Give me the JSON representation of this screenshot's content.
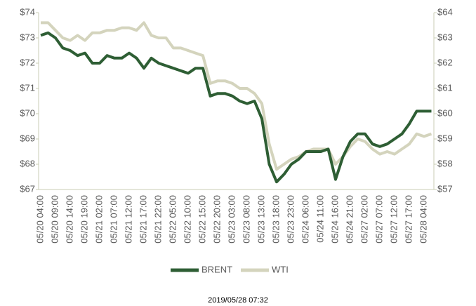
{
  "chart_data": {
    "type": "line",
    "categories": [
      "05/20 04:00",
      null,
      "05/20 09:00",
      null,
      "05/20 14:00",
      null,
      "05/20 19:00",
      null,
      "05/21 02:00",
      null,
      "05/21 07:00",
      null,
      "05/21 12:00",
      null,
      "05/21 17:00",
      null,
      "05/21 22:00",
      null,
      "05/22 05:00",
      null,
      "05/22 10:00",
      null,
      "05/22 15:00",
      null,
      "05/22 20:00",
      null,
      "05/23 03:00",
      null,
      "05/23 08:00",
      null,
      "05/23 13:00",
      null,
      "05/23 18:00",
      null,
      "05/23 23:00",
      null,
      "05/24 06:00",
      null,
      "05/24 11:00",
      null,
      "05/24 16:00",
      null,
      "05/24 21:00",
      null,
      "05/27 02:00",
      null,
      "05/27 07:00",
      null,
      "05/27 12:00",
      null,
      "05/27 17:00",
      null,
      "05/28 04:00",
      null
    ],
    "series": [
      {
        "name": "BRENT",
        "color": "#2e5e34",
        "axis": "y",
        "values": [
          73.1,
          73.2,
          73.0,
          72.6,
          72.5,
          72.3,
          72.4,
          72.0,
          72.0,
          72.3,
          72.2,
          72.2,
          72.4,
          72.2,
          71.8,
          72.2,
          72.0,
          71.9,
          71.8,
          71.7,
          71.6,
          71.8,
          71.8,
          70.7,
          70.8,
          70.8,
          70.7,
          70.5,
          70.4,
          70.5,
          69.8,
          68.0,
          67.3,
          67.6,
          68.0,
          68.2,
          68.5,
          68.5,
          68.5,
          68.6,
          67.4,
          68.3,
          68.9,
          69.2,
          69.2,
          68.8,
          68.7,
          68.8,
          69.0,
          69.2,
          69.6,
          70.1,
          70.1,
          70.1
        ]
      },
      {
        "name": "WTI",
        "color": "#d4d4bd",
        "axis": "y2",
        "values": [
          63.6,
          63.6,
          63.3,
          63.0,
          62.9,
          63.1,
          62.9,
          63.2,
          63.2,
          63.3,
          63.3,
          63.4,
          63.4,
          63.3,
          63.6,
          63.1,
          63.0,
          63.0,
          62.6,
          62.6,
          62.5,
          62.4,
          62.3,
          61.2,
          61.3,
          61.3,
          61.2,
          61.0,
          61.0,
          60.8,
          60.4,
          58.8,
          57.8,
          58.0,
          58.2,
          58.3,
          58.5,
          58.6,
          58.6,
          58.6,
          58.0,
          58.3,
          58.7,
          59.0,
          58.9,
          58.6,
          58.4,
          58.5,
          58.4,
          58.6,
          58.8,
          59.2,
          59.1,
          59.2
        ]
      }
    ],
    "ylim": [
      67,
      74
    ],
    "yticks": [
      {
        "value": 67,
        "label": "$67"
      },
      {
        "value": 68,
        "label": "$68"
      },
      {
        "value": 69,
        "label": "$69"
      },
      {
        "value": 70,
        "label": "$70"
      },
      {
        "value": 71,
        "label": "$71"
      },
      {
        "value": 72,
        "label": "$72"
      },
      {
        "value": 73,
        "label": "$73"
      },
      {
        "value": 74,
        "label": "$74"
      }
    ],
    "y2lim": [
      57,
      64
    ],
    "y2ticks": [
      {
        "value": 57,
        "label": "$57"
      },
      {
        "value": 58,
        "label": "$58"
      },
      {
        "value": 59,
        "label": "$59"
      },
      {
        "value": 60,
        "label": "$60"
      },
      {
        "value": 61,
        "label": "$61"
      },
      {
        "value": 62,
        "label": "$62"
      },
      {
        "value": 63,
        "label": "$63"
      },
      {
        "value": 64,
        "label": "$64"
      }
    ],
    "legend": "bottom",
    "footnote": "2019/05/28 07:32"
  }
}
